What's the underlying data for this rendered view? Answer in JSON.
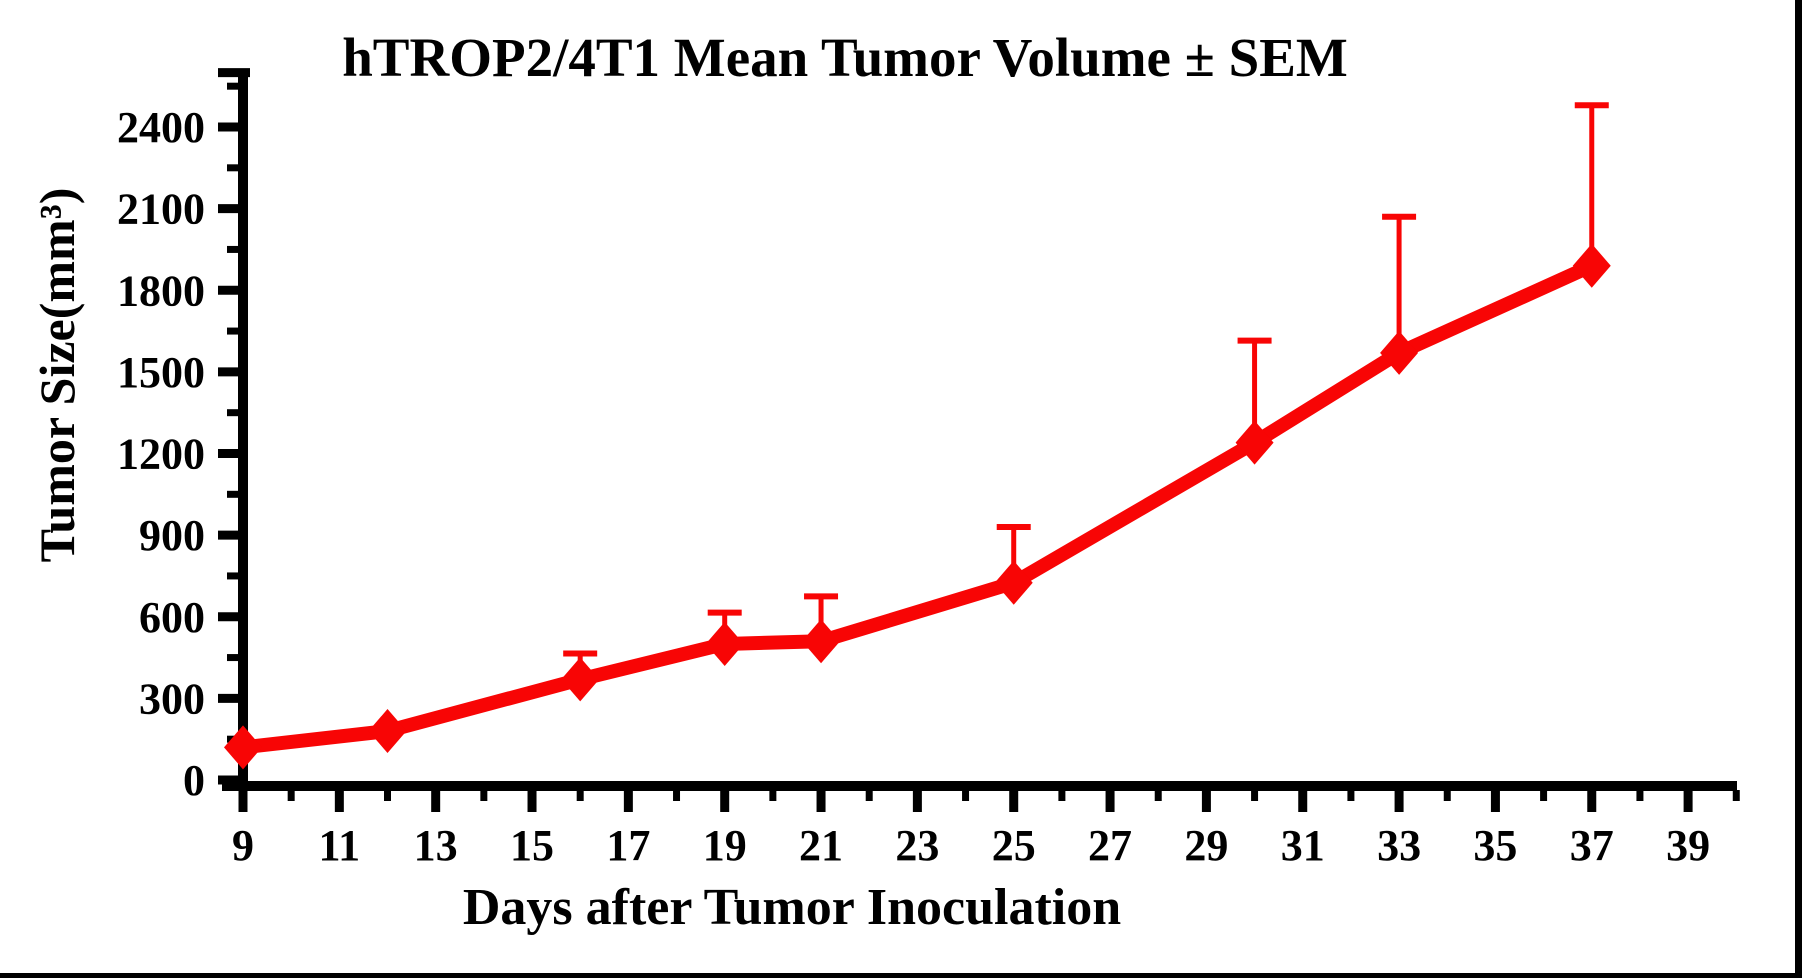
{
  "page": {
    "background": "#FFFFFF",
    "frame_color": "#000000",
    "axis_color": "#000000"
  },
  "chart_data": {
    "type": "line",
    "title": "hTROP2/4T1 Mean Tumor Volume ± SEM",
    "xlabel": "Days after Tumor Inoculation",
    "ylabel": "Tumor Size(mm³)",
    "series": [
      {
        "name": "hTROP2/4T1 mean tumor volume",
        "color": "#F80505",
        "marker": "diamond",
        "error_bars": "upper-only",
        "x": [
          9,
          12,
          16,
          19,
          21,
          25,
          30,
          33,
          37
        ],
        "mean": [
          120,
          180,
          370,
          500,
          510,
          725,
          1240,
          1570,
          1890
        ],
        "sem_upper": [
          0,
          0,
          95,
          115,
          165,
          205,
          375,
          500,
          590
        ]
      }
    ],
    "x_tick_labels": [
      9,
      11,
      13,
      15,
      17,
      19,
      21,
      23,
      25,
      27,
      29,
      31,
      33,
      35,
      37,
      39
    ],
    "x_minor_ticks": [
      10,
      12,
      14,
      16,
      18,
      20,
      22,
      24,
      26,
      28,
      30,
      32,
      34,
      36,
      38,
      40
    ],
    "y_tick_labels": [
      0,
      300,
      600,
      900,
      1200,
      1500,
      1800,
      2100,
      2400
    ],
    "y_minor_ticks": [
      150,
      450,
      750,
      1050,
      1350,
      1650,
      1950,
      2250,
      2550
    ],
    "xlim": [
      8.5,
      40.1
    ],
    "ylim": [
      0,
      2600
    ],
    "grid": false,
    "legend": "none"
  }
}
